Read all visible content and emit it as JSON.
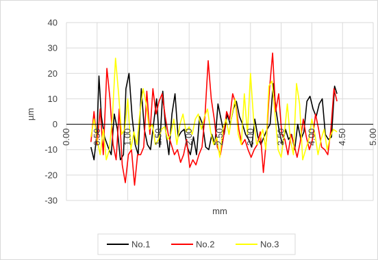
{
  "chart_data": {
    "type": "line",
    "title": "",
    "xlabel": "mm",
    "ylabel": "µm",
    "xlim": [
      0,
      5
    ],
    "ylim": [
      -30,
      40
    ],
    "x_ticks": [
      "0.00",
      "0.50",
      "1.00",
      "1.50",
      "2.00",
      "2.50",
      "3.00",
      "3.50",
      "4.00",
      "4.50",
      "5.00"
    ],
    "y_ticks": [
      "40",
      "30",
      "20",
      "10",
      "0",
      "-10",
      "-20",
      "-30"
    ],
    "grid": true,
    "legend_position": "bottom",
    "series": [
      {
        "name": "No.1",
        "color": "#000000",
        "points": [
          [
            0.4,
            -9
          ],
          [
            0.45,
            -14
          ],
          [
            0.5,
            -3
          ],
          [
            0.53,
            19
          ],
          [
            0.57,
            3
          ],
          [
            0.62,
            -5
          ],
          [
            0.68,
            -9
          ],
          [
            0.73,
            -12
          ],
          [
            0.78,
            4
          ],
          [
            0.83,
            -2
          ],
          [
            0.88,
            -14
          ],
          [
            0.93,
            -12
          ],
          [
            0.97,
            14
          ],
          [
            1.02,
            20
          ],
          [
            1.07,
            3
          ],
          [
            1.12,
            -8
          ],
          [
            1.17,
            -12
          ],
          [
            1.22,
            14
          ],
          [
            1.27,
            -2
          ],
          [
            1.32,
            -8
          ],
          [
            1.37,
            -10
          ],
          [
            1.42,
            0
          ],
          [
            1.47,
            10
          ],
          [
            1.52,
            -9
          ],
          [
            1.57,
            13
          ],
          [
            1.62,
            -3
          ],
          [
            1.67,
            -12
          ],
          [
            1.72,
            4
          ],
          [
            1.77,
            12
          ],
          [
            1.82,
            -5
          ],
          [
            1.87,
            -3
          ],
          [
            1.92,
            -2
          ],
          [
            1.97,
            -9
          ],
          [
            2.02,
            -12
          ],
          [
            2.07,
            -5
          ],
          [
            2.12,
            -12
          ],
          [
            2.17,
            3
          ],
          [
            2.22,
            0
          ],
          [
            2.27,
            -9
          ],
          [
            2.32,
            -10
          ],
          [
            2.37,
            -4
          ],
          [
            2.42,
            -8
          ],
          [
            2.47,
            8
          ],
          [
            2.52,
            2
          ],
          [
            2.57,
            -4
          ],
          [
            2.62,
            4
          ],
          [
            2.67,
            0
          ],
          [
            2.72,
            6
          ],
          [
            2.77,
            9
          ],
          [
            2.82,
            3
          ],
          [
            2.87,
            0
          ],
          [
            2.92,
            -4
          ],
          [
            2.97,
            -6
          ],
          [
            3.02,
            -9
          ],
          [
            3.07,
            2
          ],
          [
            3.12,
            -5
          ],
          [
            3.17,
            -8
          ],
          [
            3.22,
            -5
          ],
          [
            3.27,
            -2
          ],
          [
            3.32,
            0
          ],
          [
            3.37,
            16
          ],
          [
            3.42,
            5
          ],
          [
            3.47,
            -3
          ],
          [
            3.52,
            -8
          ],
          [
            3.57,
            -2
          ],
          [
            3.62,
            -6
          ],
          [
            3.67,
            -4
          ],
          [
            3.72,
            -10
          ],
          [
            3.77,
            0
          ],
          [
            3.82,
            -6
          ],
          [
            3.87,
            -3
          ],
          [
            3.92,
            9
          ],
          [
            3.97,
            11
          ],
          [
            4.02,
            6
          ],
          [
            4.07,
            3
          ],
          [
            4.12,
            8
          ],
          [
            4.17,
            10
          ],
          [
            4.22,
            -4
          ],
          [
            4.27,
            -6
          ],
          [
            4.32,
            -5
          ],
          [
            4.37,
            15
          ],
          [
            4.41,
            12
          ]
        ]
      },
      {
        "name": "No.2",
        "color": "#ff0000",
        "points": [
          [
            0.4,
            -7
          ],
          [
            0.45,
            5
          ],
          [
            0.5,
            -8
          ],
          [
            0.55,
            6
          ],
          [
            0.6,
            -12
          ],
          [
            0.66,
            22
          ],
          [
            0.71,
            10
          ],
          [
            0.76,
            -8
          ],
          [
            0.81,
            -14
          ],
          [
            0.86,
            6
          ],
          [
            0.91,
            -16
          ],
          [
            0.96,
            -23
          ],
          [
            1.01,
            -12
          ],
          [
            1.06,
            -10
          ],
          [
            1.11,
            -24
          ],
          [
            1.16,
            -12
          ],
          [
            1.21,
            -12
          ],
          [
            1.26,
            -9
          ],
          [
            1.31,
            13
          ],
          [
            1.36,
            -4
          ],
          [
            1.41,
            14
          ],
          [
            1.46,
            4
          ],
          [
            1.51,
            9
          ],
          [
            1.56,
            12
          ],
          [
            1.61,
            3
          ],
          [
            1.66,
            -4
          ],
          [
            1.71,
            -8
          ],
          [
            1.76,
            -12
          ],
          [
            1.81,
            -10
          ],
          [
            1.86,
            -15
          ],
          [
            1.91,
            -12
          ],
          [
            1.96,
            -6
          ],
          [
            2.01,
            -17
          ],
          [
            2.06,
            -14
          ],
          [
            2.11,
            -16
          ],
          [
            2.16,
            -12
          ],
          [
            2.21,
            -9
          ],
          [
            2.26,
            4
          ],
          [
            2.31,
            25
          ],
          [
            2.36,
            10
          ],
          [
            2.41,
            2
          ],
          [
            2.46,
            -9
          ],
          [
            2.51,
            -12
          ],
          [
            2.56,
            -5
          ],
          [
            2.61,
            5
          ],
          [
            2.66,
            2
          ],
          [
            2.71,
            12
          ],
          [
            2.76,
            8
          ],
          [
            2.81,
            -2
          ],
          [
            2.86,
            -8
          ],
          [
            2.91,
            -6
          ],
          [
            2.96,
            -10
          ],
          [
            3.01,
            -13
          ],
          [
            3.06,
            -10
          ],
          [
            3.11,
            -8
          ],
          [
            3.16,
            -3
          ],
          [
            3.21,
            -19
          ],
          [
            3.26,
            -6
          ],
          [
            3.31,
            14
          ],
          [
            3.36,
            28
          ],
          [
            3.41,
            5
          ],
          [
            3.46,
            12
          ],
          [
            3.51,
            -4
          ],
          [
            3.56,
            -6
          ],
          [
            3.61,
            -12
          ],
          [
            3.66,
            -4
          ],
          [
            3.71,
            -8
          ],
          [
            3.76,
            -13
          ],
          [
            3.81,
            -7
          ],
          [
            3.86,
            2
          ],
          [
            3.91,
            -5
          ],
          [
            3.96,
            -10
          ],
          [
            4.01,
            -6
          ],
          [
            4.06,
            4
          ],
          [
            4.11,
            -2
          ],
          [
            4.16,
            -9
          ],
          [
            4.21,
            -10
          ],
          [
            4.26,
            -12
          ],
          [
            4.31,
            -2
          ],
          [
            4.36,
            14
          ],
          [
            4.41,
            9
          ]
        ]
      },
      {
        "name": "No.3",
        "color": "#ffff00",
        "points": [
          [
            0.4,
            -5
          ],
          [
            0.45,
            2
          ],
          [
            0.5,
            -6
          ],
          [
            0.55,
            -12
          ],
          [
            0.6,
            -2
          ],
          [
            0.65,
            -14
          ],
          [
            0.7,
            -10
          ],
          [
            0.75,
            3
          ],
          [
            0.8,
            26
          ],
          [
            0.85,
            12
          ],
          [
            0.9,
            -4
          ],
          [
            0.95,
            -2
          ],
          [
            1.0,
            10
          ],
          [
            1.05,
            -10
          ],
          [
            1.1,
            -3
          ],
          [
            1.15,
            -8
          ],
          [
            1.2,
            5
          ],
          [
            1.25,
            14
          ],
          [
            1.3,
            8
          ],
          [
            1.35,
            -2
          ],
          [
            1.4,
            0
          ],
          [
            1.45,
            -8
          ],
          [
            1.5,
            -6
          ],
          [
            1.55,
            -2
          ],
          [
            1.6,
            -1
          ],
          [
            1.65,
            -6
          ],
          [
            1.7,
            -4
          ],
          [
            1.75,
            2
          ],
          [
            1.8,
            -8
          ],
          [
            1.85,
            0
          ],
          [
            1.9,
            4
          ],
          [
            1.95,
            -3
          ],
          [
            2.0,
            -1
          ],
          [
            2.05,
            -4
          ],
          [
            2.1,
            2
          ],
          [
            2.15,
            4
          ],
          [
            2.2,
            -2
          ],
          [
            2.25,
            3
          ],
          [
            2.3,
            6
          ],
          [
            2.35,
            -3
          ],
          [
            2.4,
            -8
          ],
          [
            2.45,
            -5
          ],
          [
            2.5,
            -13
          ],
          [
            2.55,
            -2
          ],
          [
            2.6,
            2
          ],
          [
            2.65,
            -4
          ],
          [
            2.7,
            4
          ],
          [
            2.75,
            10
          ],
          [
            2.8,
            -4
          ],
          [
            2.85,
            -8
          ],
          [
            2.9,
            12
          ],
          [
            2.95,
            -4
          ],
          [
            3.0,
            20
          ],
          [
            3.05,
            2
          ],
          [
            3.1,
            -8
          ],
          [
            3.15,
            -6
          ],
          [
            3.2,
            -2
          ],
          [
            3.25,
            -10
          ],
          [
            3.3,
            15
          ],
          [
            3.35,
            17
          ],
          [
            3.4,
            4
          ],
          [
            3.45,
            -10
          ],
          [
            3.5,
            -13
          ],
          [
            3.55,
            -4
          ],
          [
            3.6,
            8
          ],
          [
            3.65,
            -6
          ],
          [
            3.7,
            -12
          ],
          [
            3.75,
            16
          ],
          [
            3.8,
            8
          ],
          [
            3.85,
            -14
          ],
          [
            3.9,
            -10
          ],
          [
            3.95,
            -6
          ],
          [
            4.0,
            2
          ],
          [
            4.05,
            -4
          ],
          [
            4.1,
            -12
          ],
          [
            4.15,
            -6
          ],
          [
            4.2,
            -2
          ],
          [
            4.25,
            -10
          ],
          [
            4.3,
            -5
          ],
          [
            4.35,
            -2
          ],
          [
            4.41,
            -3
          ]
        ]
      }
    ]
  }
}
